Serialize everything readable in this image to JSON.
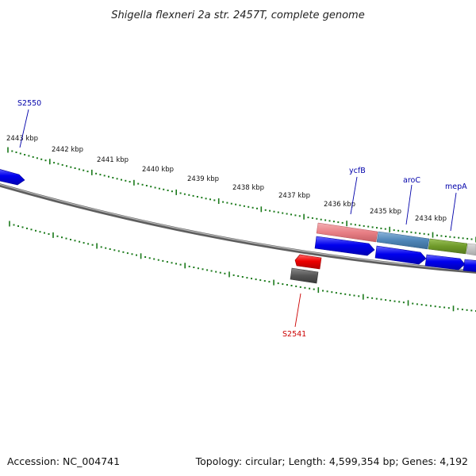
{
  "title": "Shigella flexneri 2a str. 2457T, complete genome",
  "footer": {
    "accession": "Accession: NC_004741",
    "summary": "Topology: circular; Length: 4,599,354 bp; Genes: 4,192"
  },
  "colors": {
    "backbone": "#7d7d7d",
    "ticks": "#1b7a1b",
    "gene_forward": "#0000ee",
    "gene_reverse": "#ee0000",
    "label_forward": "#0000aa",
    "label_reverse": "#cc0000"
  },
  "scale": {
    "unit": "kbp",
    "ticks_kbp": [
      2443,
      2442,
      2441,
      2440,
      2439,
      2438,
      2437,
      2436,
      2435,
      2434
    ],
    "labels": [
      "2443 kbp",
      "2442 kbp",
      "2441 kbp",
      "2440 kbp",
      "2439 kbp",
      "2438 kbp",
      "2437 kbp",
      "2436 kbp",
      "2435 kbp",
      "2434 kbp"
    ]
  },
  "features": [
    {
      "name": "S2550",
      "strand": "+",
      "category": "CDS",
      "color": "#0000ee"
    },
    {
      "name": "ycfB",
      "strand": "+",
      "category": "CDS",
      "color": "#0000ee",
      "annotation_color": "#e87f85"
    },
    {
      "name": "aroC",
      "strand": "+",
      "category": "CDS",
      "color": "#0000ee",
      "annotation_color": "#4f86b8"
    },
    {
      "name": "mepA",
      "strand": "+",
      "category": "CDS",
      "color": "#0000ee",
      "annotation_color": "#6f9a2a"
    },
    {
      "name": "S2541",
      "strand": "-",
      "category": "CDS",
      "color": "#ee0000",
      "annotation_color": "#666666"
    }
  ]
}
